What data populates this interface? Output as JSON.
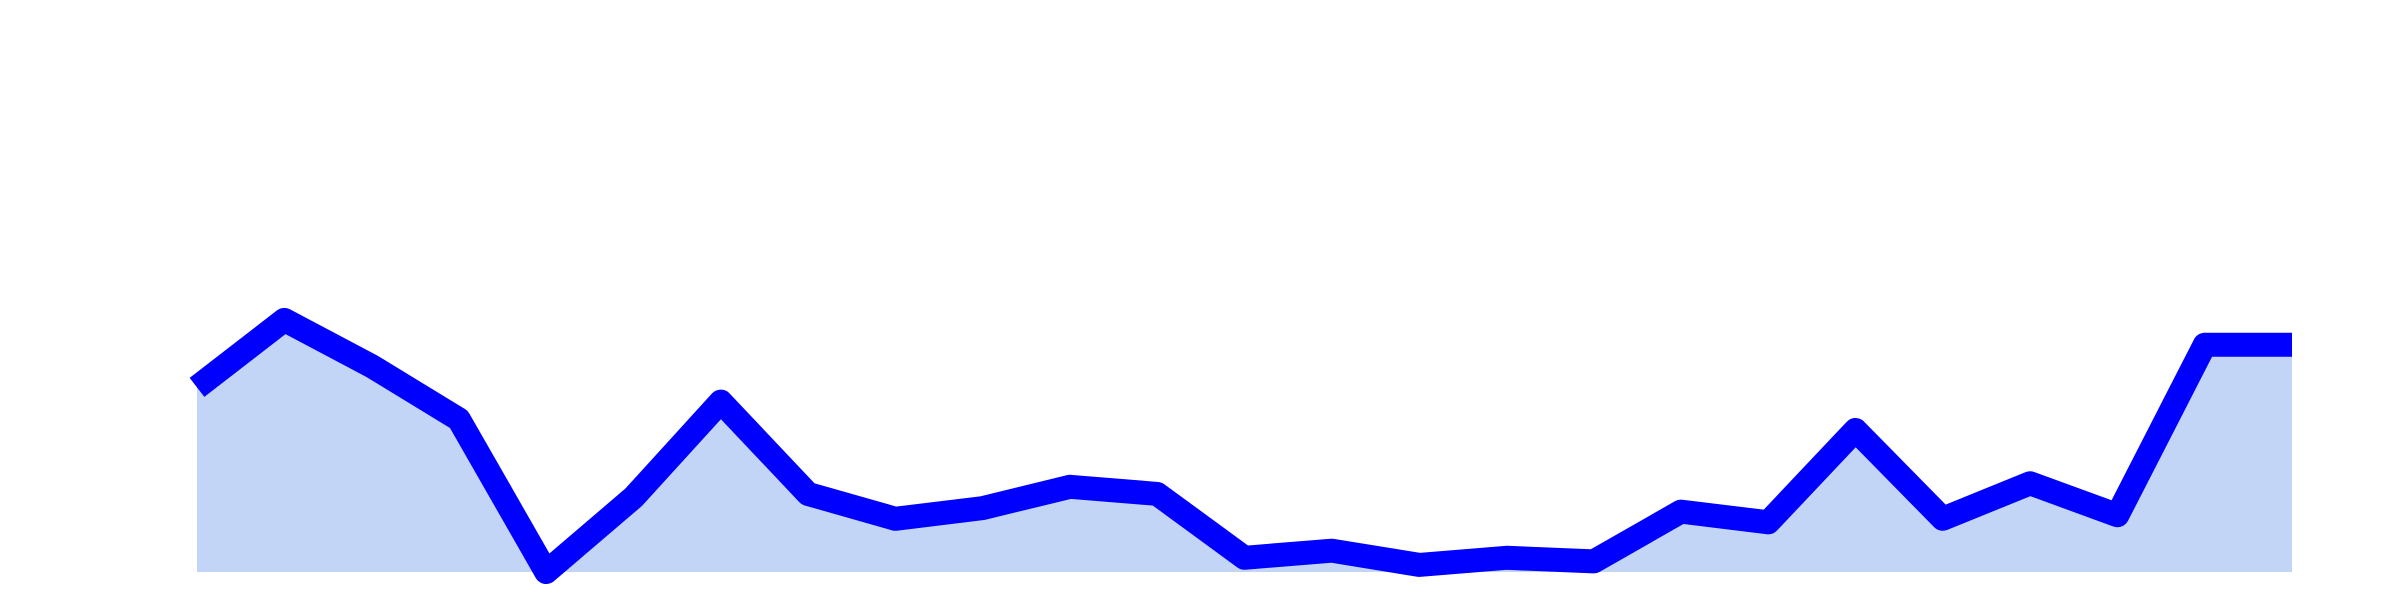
{
  "chart_data": {
    "type": "area",
    "title": "",
    "xlabel": "",
    "ylabel": "",
    "grid": false,
    "legend": "none",
    "x": [
      1,
      2,
      3,
      4,
      5,
      6,
      7,
      8,
      9,
      10,
      11,
      12,
      13,
      14,
      15,
      16,
      17,
      18,
      19,
      20,
      21,
      22,
      23,
      24,
      25
    ],
    "series": [
      {
        "name": "",
        "values": [
          0.49,
          0.68,
          0.55,
          0.4,
          -0.03,
          0.18,
          0.45,
          0.19,
          0.12,
          0.15,
          0.21,
          0.19,
          0.01,
          0.03,
          -0.01,
          0.01,
          0.0,
          0.14,
          0.11,
          0.37,
          0.12,
          0.22,
          0.13,
          0.61,
          0.61
        ]
      }
    ],
    "ylim": [
      -1.02,
      1.02
    ],
    "colors": {
      "line": "#0000ff",
      "fill": "#c2d5f6"
    }
  }
}
